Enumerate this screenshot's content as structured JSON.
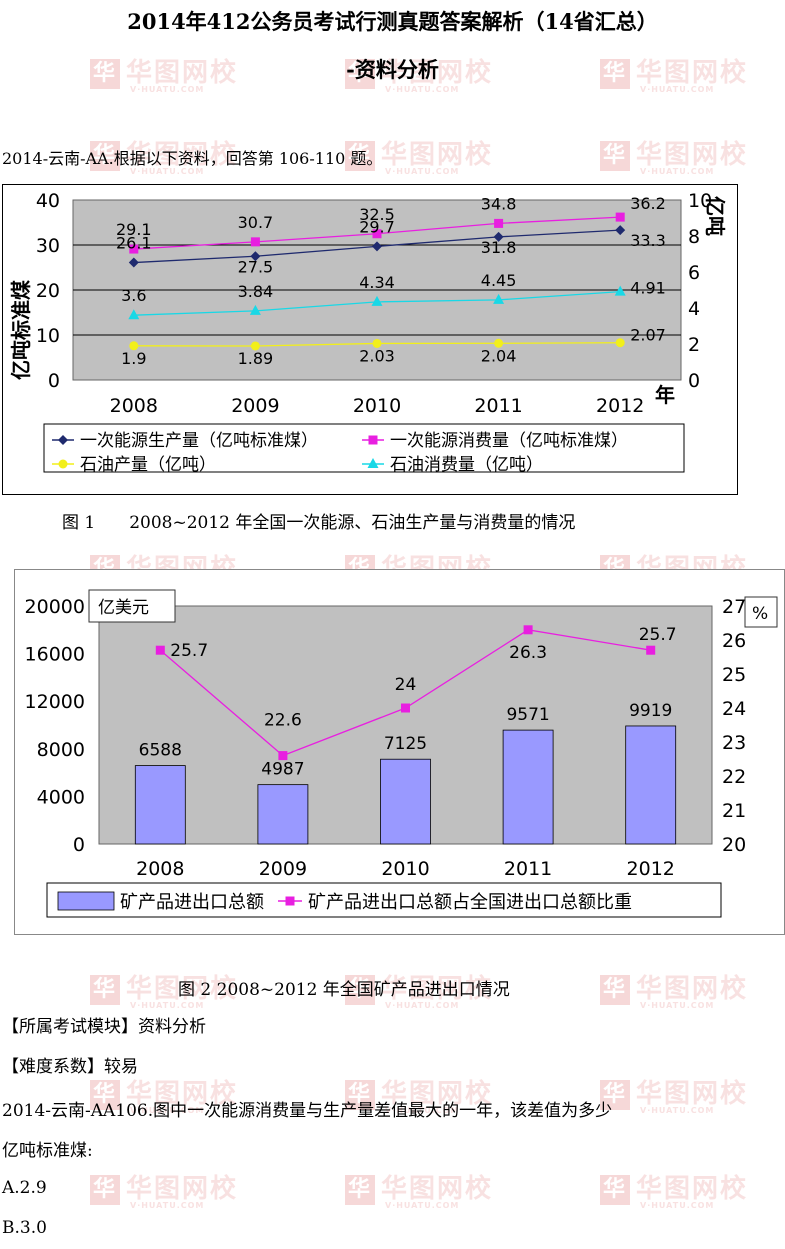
{
  "title_line1": "2014年412公务员考试行测真题答案解析（14省汇总）",
  "title_line2": "-资料分析",
  "watermark": {
    "text": "华图网校",
    "sub": "V·HUATU.COM",
    "logo": "华"
  },
  "intro": "2014-云南-AA.根据以下资料，回答第 106-110 题。",
  "fig1_caption": "图 1　　2008~2012 年全国一次能源、石油生产量与消费量的情况",
  "fig2_caption": "图 2 2008~2012 年全国矿产品进出口情况",
  "module": "【所属考试模块】资料分析",
  "difficulty": "【难度系数】较易",
  "question_line1": "2014-云南-AA106.图中一次能源消费量与生产量差值最大的一年，该差值为多少",
  "question_line2": "亿吨标准煤:",
  "option_a": "A.2.9",
  "option_b": "B.3.0",
  "chart_data": [
    {
      "type": "line",
      "x": [
        "2008",
        "2009",
        "2010",
        "2011",
        "2012"
      ],
      "xlabel_unit": "年",
      "ylabel_left": "亿吨标准煤",
      "ylabel_right": "亿吨",
      "ylim_left": [
        0,
        40
      ],
      "yticks_left": [
        0,
        10,
        20,
        30,
        40
      ],
      "ylim_right": [
        0,
        10
      ],
      "yticks_right": [
        0,
        2,
        4,
        6,
        8,
        10
      ],
      "grid": true,
      "legend_position": "bottom",
      "series": [
        {
          "name": "一次能源生产量（亿吨标准煤）",
          "axis": "left",
          "values": [
            26.1,
            27.5,
            29.7,
            31.8,
            33.3
          ],
          "labels": [
            "26.1",
            "27.5",
            "29.7",
            "31.8",
            "33.3"
          ],
          "color": "#1f2a6e",
          "marker": "diamond"
        },
        {
          "name": "一次能源消费量（亿吨标准煤）",
          "axis": "left",
          "values": [
            29.1,
            30.7,
            32.5,
            34.8,
            36.2
          ],
          "labels": [
            "29.1",
            "30.7",
            "32.5",
            "34.8",
            "36.2"
          ],
          "color": "#e81fe0",
          "marker": "square"
        },
        {
          "name": "石油产量（亿吨）",
          "axis": "right",
          "values": [
            1.9,
            1.89,
            2.03,
            2.04,
            2.07
          ],
          "labels": [
            "1.9",
            "1.89",
            "2.03",
            "2.04",
            "2.07"
          ],
          "color": "#f2ef1a",
          "marker": "circle"
        },
        {
          "name": "石油消费量（亿吨）",
          "axis": "right",
          "values": [
            3.6,
            3.84,
            4.34,
            4.45,
            4.91
          ],
          "labels": [
            "3.6",
            "3.84",
            "4.34",
            "4.45",
            "4.91"
          ],
          "color": "#19d8e6",
          "marker": "triangle"
        }
      ]
    },
    {
      "type": "bar",
      "categories": [
        "2008",
        "2009",
        "2010",
        "2011",
        "2012"
      ],
      "unit_left": "亿美元",
      "unit_right": "%",
      "ylim_left": [
        0,
        20000
      ],
      "yticks_left": [
        0,
        4000,
        8000,
        12000,
        16000,
        20000
      ],
      "ylim_right": [
        20,
        27
      ],
      "yticks_right": [
        20,
        21,
        22,
        23,
        24,
        25,
        26,
        27
      ],
      "legend_position": "bottom",
      "series": [
        {
          "name": "矿产品进出口总额",
          "type": "bar",
          "axis": "left",
          "values": [
            6588,
            4987,
            7125,
            9571,
            9919
          ],
          "labels": [
            "6588",
            "4987",
            "7125",
            "9571",
            "9919"
          ],
          "color": "#9999ff"
        },
        {
          "name": "矿产品进出口总额占全国进出口总额比重",
          "type": "line",
          "axis": "right",
          "values": [
            25.7,
            22.6,
            24,
            26.3,
            25.7
          ],
          "labels": [
            "25.7",
            "22.6",
            "24",
            "26.3",
            "25.7"
          ],
          "color": "#e81fe0"
        }
      ]
    }
  ]
}
